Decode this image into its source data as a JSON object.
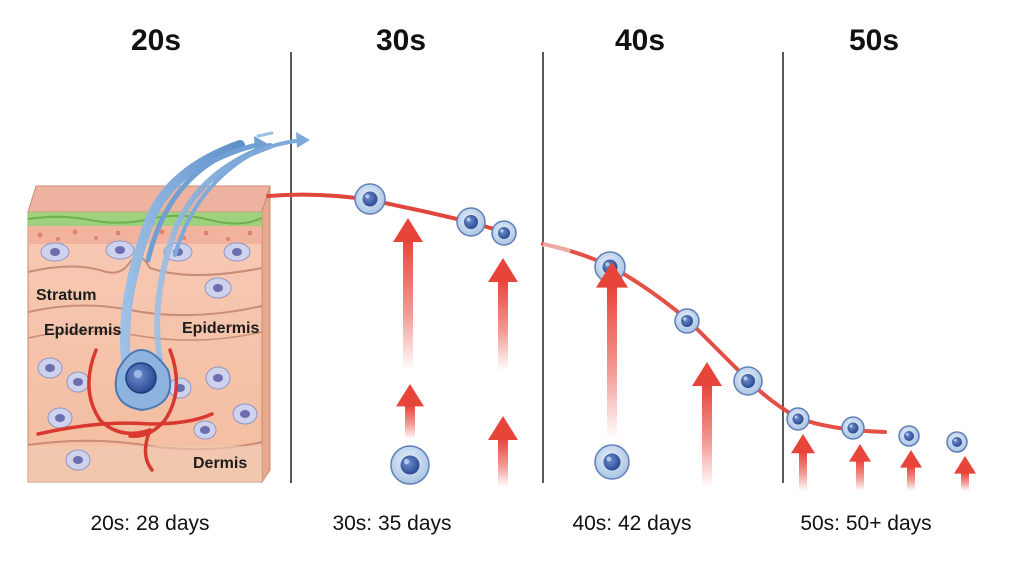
{
  "headings": [
    "20s",
    "30s",
    "40s",
    "50s"
  ],
  "footers": [
    "20s: 28 days",
    "30s: 35 days",
    "40s: 42 days",
    "50s: 50+ days"
  ],
  "skin_labels": {
    "stratum": "Stratum",
    "epidermis_left": "Epidermis",
    "epidermis_right": "Epidermis",
    "dermis": "Dermis"
  },
  "colors": {
    "skin_top": "#eeb3a0",
    "skin_body": "#f6c6ae",
    "grass_layer": "#9fd07e",
    "cell_fill": "#cfe1f2",
    "cell_nucleus": "#3b5ea8",
    "turnover_curve": "#e0473c",
    "arrow_red": "#e8453a",
    "stem_cell_blue": "#7aa6d6",
    "divider": "#222222"
  },
  "icons": [
    "skin-cross-section-icon",
    "stem-cell-icon",
    "epidermal-cell-icon",
    "upward-arrow-icon",
    "blood-vessel-icon"
  ]
}
